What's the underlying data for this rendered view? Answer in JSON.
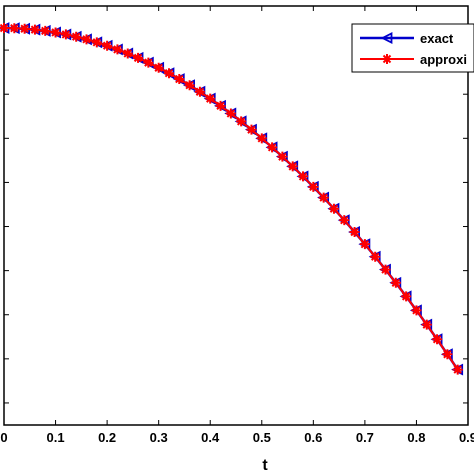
{
  "chart_data": {
    "type": "line",
    "xlabel": "t",
    "ylabel": "",
    "xlim": [
      0,
      0.9
    ],
    "ylim": [
      -0.2,
      1.7
    ],
    "xticks": [
      0,
      0.1,
      0.2,
      0.3,
      0.4,
      0.5,
      0.6,
      0.7,
      0.8,
      0.9
    ],
    "xtick_labels": [
      "0",
      "0.1",
      "0.2",
      "0.3",
      "0.4",
      "0.5",
      "0.6",
      "0.7",
      "0.8",
      "0.9"
    ],
    "yticks": [
      -0.1,
      0.1,
      0.3,
      0.5,
      0.7,
      0.9,
      1.1,
      1.3,
      1.5
    ],
    "legend_position": "top-right",
    "x": [
      0,
      0.02,
      0.04,
      0.06,
      0.08,
      0.1,
      0.12,
      0.14,
      0.16,
      0.18,
      0.2,
      0.22,
      0.24,
      0.26,
      0.28,
      0.3,
      0.32,
      0.34,
      0.36,
      0.38,
      0.4,
      0.42,
      0.44,
      0.46,
      0.48,
      0.5,
      0.52,
      0.54,
      0.56,
      0.58,
      0.6,
      0.62,
      0.64,
      0.66,
      0.68,
      0.7,
      0.72,
      0.74,
      0.76,
      0.78,
      0.8,
      0.82,
      0.84,
      0.86,
      0.88
    ],
    "series": [
      {
        "name": "exact",
        "color": "#0000cc",
        "marker": "triangle-left",
        "values": [
          1.6,
          1.5992,
          1.5968,
          1.5928,
          1.5872,
          1.58,
          1.5712,
          1.5608,
          1.5488,
          1.5352,
          1.52,
          1.5032,
          1.4848,
          1.4648,
          1.4432,
          1.42,
          1.3952,
          1.3688,
          1.3408,
          1.3112,
          1.28,
          1.2472,
          1.2128,
          1.1768,
          1.1392,
          1.1,
          1.0592,
          1.0168,
          0.9728,
          0.9272,
          0.88,
          0.8312,
          0.7808,
          0.7288,
          0.6752,
          0.62,
          0.5632,
          0.5048,
          0.4448,
          0.3832,
          0.32,
          0.2552,
          0.1888,
          0.1208,
          0.0512
        ]
      },
      {
        "name": "approxi",
        "color": "#ff0000",
        "marker": "asterisk",
        "values": [
          1.6,
          1.5992,
          1.5968,
          1.5928,
          1.5872,
          1.58,
          1.5712,
          1.5608,
          1.5488,
          1.5352,
          1.52,
          1.5032,
          1.4848,
          1.4648,
          1.4432,
          1.42,
          1.3952,
          1.3688,
          1.3408,
          1.3112,
          1.28,
          1.2472,
          1.2128,
          1.1768,
          1.1392,
          1.1,
          1.0592,
          1.0168,
          0.9728,
          0.9272,
          0.88,
          0.8312,
          0.7808,
          0.7288,
          0.6752,
          0.62,
          0.5632,
          0.5048,
          0.4448,
          0.3832,
          0.32,
          0.2552,
          0.1888,
          0.1208,
          0.0512
        ]
      }
    ]
  }
}
